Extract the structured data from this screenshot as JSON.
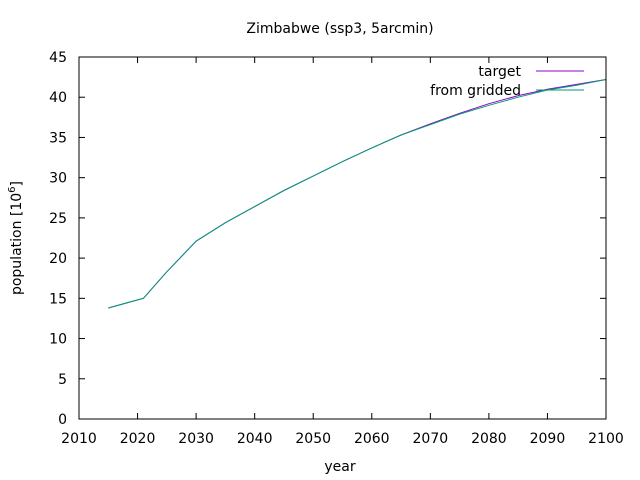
{
  "chart_data": {
    "type": "line",
    "title": "Zimbabwe (ssp3, 5arcmin)",
    "xlabel": "year",
    "ylabel_main": "population [10",
    "ylabel_exp": "6",
    "ylabel_close": "]",
    "xlim": [
      2010,
      2100
    ],
    "ylim": [
      0,
      45
    ],
    "xticks": [
      2010,
      2020,
      2030,
      2040,
      2050,
      2060,
      2070,
      2080,
      2090,
      2100
    ],
    "yticks": [
      0,
      5,
      10,
      15,
      20,
      25,
      30,
      35,
      40,
      45
    ],
    "grid": false,
    "legend_position": "top-right",
    "series": [
      {
        "name": "target",
        "color": "#9400d3",
        "x": [
          2015,
          2020,
          2021,
          2025,
          2030,
          2035,
          2040,
          2045,
          2050,
          2055,
          2060,
          2065,
          2070,
          2075,
          2080,
          2085,
          2090,
          2095,
          2100
        ],
        "y": [
          13.8,
          14.8,
          15.0,
          18.3,
          22.1,
          24.4,
          26.4,
          28.4,
          30.2,
          32.0,
          33.7,
          35.3,
          36.7,
          38.0,
          39.2,
          40.2,
          41.0,
          41.6,
          42.2
        ]
      },
      {
        "name": "from gridded",
        "color": "#009e73",
        "x": [
          2015,
          2020,
          2021,
          2025,
          2030,
          2035,
          2040,
          2045,
          2050,
          2055,
          2060,
          2065,
          2070,
          2075,
          2080,
          2085,
          2090,
          2095,
          2100
        ],
        "y": [
          13.8,
          14.8,
          15.0,
          18.3,
          22.1,
          24.4,
          26.4,
          28.4,
          30.2,
          32.0,
          33.7,
          35.3,
          36.6,
          37.9,
          39.0,
          40.0,
          40.9,
          41.5,
          42.2
        ]
      }
    ]
  }
}
